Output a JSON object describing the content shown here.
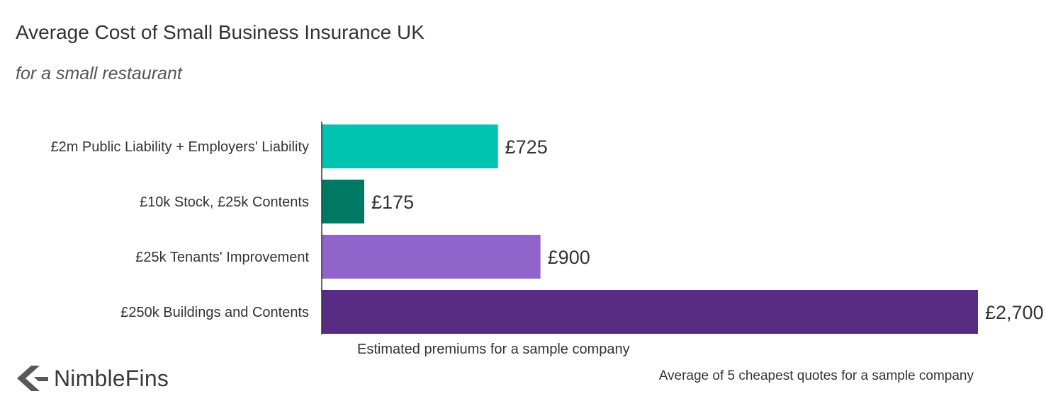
{
  "header": {
    "title": "Average Cost of Small Business Insurance UK",
    "subtitle": "for a small restaurant"
  },
  "chart_data": {
    "type": "bar",
    "orientation": "horizontal",
    "title": "Average Cost of Small Business Insurance UK",
    "subtitle": "for a small restaurant",
    "categories": [
      "£2m Public Liability + Employers' Liability",
      "£10k Stock, £25k Contents",
      "£25k Tenants' Improvement",
      "£250k Buildings and Contents"
    ],
    "values": [
      725,
      175,
      900,
      2700
    ],
    "value_labels": [
      "£725",
      "£175",
      "£900",
      "£2,700"
    ],
    "colors": [
      "#00c4b0",
      "#007964",
      "#9164cc",
      "#582c83"
    ],
    "xlabel": "Estimated premiums for a sample company",
    "ylabel": "",
    "xlim": [
      0,
      2700
    ],
    "grid": false,
    "legend": "none"
  },
  "footer": {
    "brand": "NimbleFins",
    "brand_icon": "nimblefins-arrow-icon",
    "note": "Average of 5 cheapest quotes for a sample company"
  }
}
